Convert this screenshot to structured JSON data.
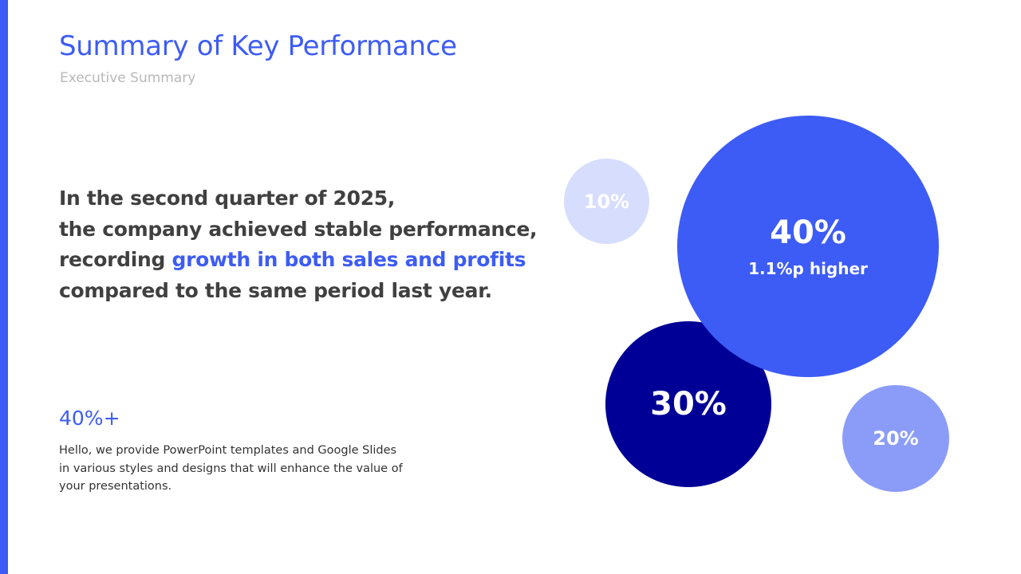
{
  "slide": {
    "title": "Summary of Key Performance",
    "subtitle": "Executive Summary",
    "headline": {
      "line1": "In the second quarter of 2025,",
      "line2": "the company achieved stable performance,",
      "line3_prefix": "recording ",
      "line3_highlight": "growth in both sales and profits",
      "line4": "compared to the same period last year."
    },
    "stat": "40%+",
    "description": "Hello, we provide PowerPoint templates and Google Slides in various styles and designs that will enhance the value of your presentations."
  },
  "bubbles": [
    {
      "label": "10%",
      "value": 10,
      "color": "#d7ddfd"
    },
    {
      "label": "40%",
      "sublabel": "1.1%p higher",
      "value": 40,
      "color": "#3d5cf5"
    },
    {
      "label": "30%",
      "value": 30,
      "color": "#000096"
    },
    {
      "label": "20%",
      "value": 20,
      "color": "#8b9cf8"
    }
  ],
  "colors": {
    "accent": "#3d5cf5",
    "text": "#404040",
    "muted": "#b8b8b8"
  }
}
